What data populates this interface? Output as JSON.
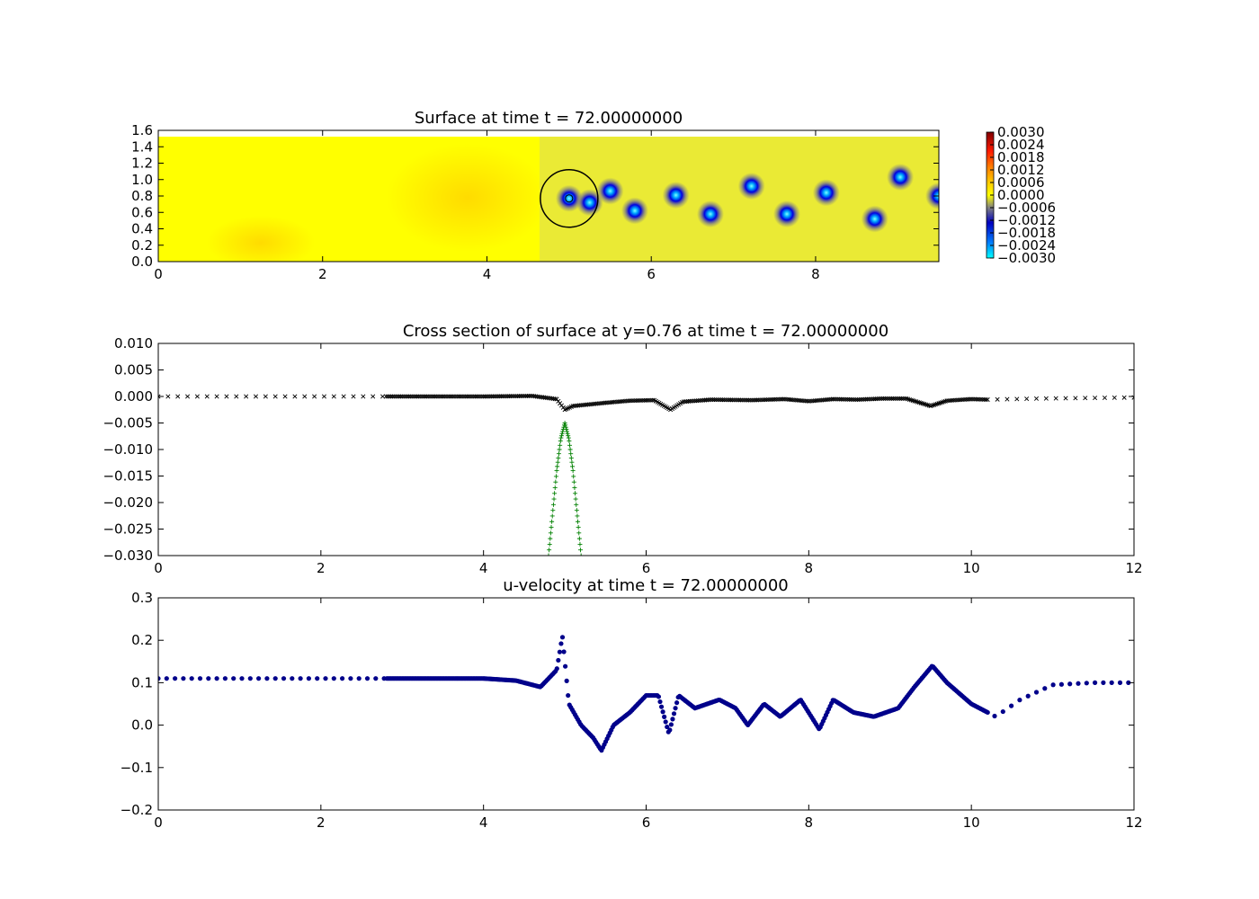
{
  "chart_data": [
    {
      "type": "heatmap",
      "title": "Surface at time t =    72.00000000",
      "xlim": [
        0,
        9.5
      ],
      "ylim": [
        0,
        1.6
      ],
      "xticks": [
        "0",
        "2",
        "4",
        "6",
        "8"
      ],
      "yticks": [
        "0.0",
        "0.2",
        "0.4",
        "0.6",
        "0.8",
        "1.0",
        "1.2",
        "1.4",
        "1.6"
      ],
      "colorbar": {
        "range": [
          -0.003,
          0.003
        ],
        "ticks": [
          "0.0030",
          "0.0024",
          "0.0018",
          "0.0012",
          "0.0006",
          "0.0000",
          "−0.0006",
          "−0.0012",
          "−0.0018",
          "−0.0024",
          "−0.0030"
        ]
      },
      "vortices": [
        {
          "x": 5.0,
          "y": 0.77
        },
        {
          "x": 5.25,
          "y": 0.72
        },
        {
          "x": 5.5,
          "y": 0.86
        },
        {
          "x": 5.8,
          "y": 0.62
        },
        {
          "x": 6.3,
          "y": 0.81
        },
        {
          "x": 6.72,
          "y": 0.58
        },
        {
          "x": 7.22,
          "y": 0.92
        },
        {
          "x": 7.65,
          "y": 0.58
        },
        {
          "x": 8.13,
          "y": 0.84
        },
        {
          "x": 8.72,
          "y": 0.52
        },
        {
          "x": 9.03,
          "y": 1.03
        },
        {
          "x": 9.5,
          "y": 0.8
        }
      ],
      "circle": {
        "cx": 5.0,
        "cy": 0.77,
        "r": 0.35
      },
      "grid": false
    },
    {
      "type": "scatter",
      "title": "Cross section of surface at y=0.76 at time t =    72.00000000",
      "xlim": [
        0,
        12
      ],
      "ylim": [
        -0.03,
        0.01
      ],
      "xticks": [
        "0",
        "2",
        "4",
        "6",
        "8",
        "10",
        "12"
      ],
      "yticks": [
        "0.010",
        "0.005",
        "0.000",
        "−0.005",
        "−0.010",
        "−0.015",
        "−0.020",
        "−0.025",
        "−0.030"
      ],
      "series": [
        {
          "marker": "x",
          "color": "#000000",
          "points": [
            [
              0,
              0.0
            ],
            [
              2.8,
              0.0
            ],
            [
              4.0,
              0.0
            ],
            [
              4.6,
              0.0001
            ],
            [
              4.9,
              -0.0005
            ],
            [
              5.0,
              -0.0025
            ],
            [
              5.1,
              -0.0018
            ],
            [
              5.3,
              -0.0015
            ],
            [
              5.5,
              -0.0012
            ],
            [
              5.8,
              -0.0008
            ],
            [
              6.1,
              -0.0007
            ],
            [
              6.3,
              -0.0025
            ],
            [
              6.45,
              -0.001
            ],
            [
              6.8,
              -0.0006
            ],
            [
              7.3,
              -0.0007
            ],
            [
              7.7,
              -0.0005
            ],
            [
              8.0,
              -0.0009
            ],
            [
              8.3,
              -0.0005
            ],
            [
              8.6,
              -0.0006
            ],
            [
              8.9,
              -0.0004
            ],
            [
              9.2,
              -0.0004
            ],
            [
              9.5,
              -0.0018
            ],
            [
              9.7,
              -0.0008
            ],
            [
              10.0,
              -0.0005
            ],
            [
              10.2,
              -0.0006
            ],
            [
              10.8,
              -0.0004
            ],
            [
              11.4,
              -0.0003
            ],
            [
              12.0,
              -0.0002
            ]
          ]
        },
        {
          "marker": "+",
          "color": "#008000",
          "points": [
            [
              4.8,
              -0.03
            ],
            [
              4.85,
              -0.022
            ],
            [
              4.9,
              -0.014
            ],
            [
              4.95,
              -0.008
            ],
            [
              5.0,
              -0.005
            ],
            [
              5.05,
              -0.008
            ],
            [
              5.1,
              -0.014
            ],
            [
              5.15,
              -0.022
            ],
            [
              5.2,
              -0.03
            ]
          ]
        }
      ],
      "grid": false
    },
    {
      "type": "scatter",
      "title": "u-velocity at time t =    72.00000000",
      "xlim": [
        0,
        12
      ],
      "ylim": [
        -0.2,
        0.3
      ],
      "xticks": [
        "0",
        "2",
        "4",
        "6",
        "8",
        "10",
        "12"
      ],
      "yticks": [
        "0.3",
        "0.2",
        "0.1",
        "0.0",
        "−0.1",
        "−0.2"
      ],
      "series": [
        {
          "marker": "o",
          "color": "#00008b",
          "points": [
            [
              0,
              0.11
            ],
            [
              2.8,
              0.11
            ],
            [
              4.0,
              0.11
            ],
            [
              4.4,
              0.105
            ],
            [
              4.7,
              0.09
            ],
            [
              4.9,
              0.13
            ],
            [
              4.97,
              0.21
            ],
            [
              5.05,
              0.05
            ],
            [
              5.2,
              0.0
            ],
            [
              5.35,
              -0.03
            ],
            [
              5.45,
              -0.06
            ],
            [
              5.6,
              0.0
            ],
            [
              5.8,
              0.03
            ],
            [
              6.0,
              0.07
            ],
            [
              6.15,
              0.07
            ],
            [
              6.28,
              -0.02
            ],
            [
              6.4,
              0.07
            ],
            [
              6.6,
              0.04
            ],
            [
              6.9,
              0.06
            ],
            [
              7.1,
              0.04
            ],
            [
              7.25,
              0.0
            ],
            [
              7.45,
              0.05
            ],
            [
              7.65,
              0.02
            ],
            [
              7.9,
              0.06
            ],
            [
              8.13,
              -0.01
            ],
            [
              8.3,
              0.06
            ],
            [
              8.55,
              0.03
            ],
            [
              8.8,
              0.02
            ],
            [
              9.1,
              0.04
            ],
            [
              9.3,
              0.09
            ],
            [
              9.52,
              0.14
            ],
            [
              9.7,
              0.1
            ],
            [
              10.0,
              0.05
            ],
            [
              10.3,
              0.02
            ],
            [
              10.6,
              0.06
            ],
            [
              11.0,
              0.095
            ],
            [
              11.5,
              0.1
            ],
            [
              12.0,
              0.1
            ]
          ]
        }
      ],
      "grid": false
    }
  ]
}
